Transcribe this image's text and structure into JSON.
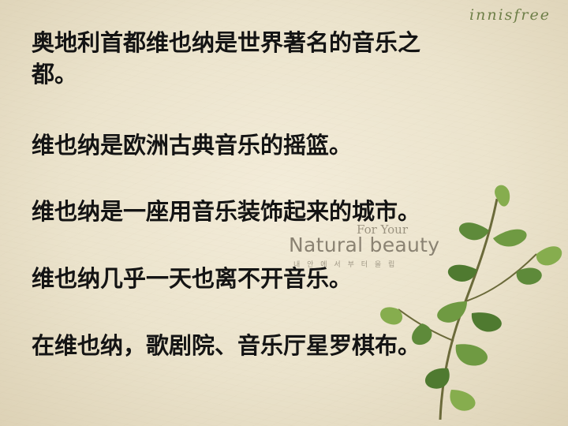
{
  "brand": "innisfree",
  "watermark": {
    "line1": "For Your",
    "line2": "Natural beauty",
    "line3": "내 안 에 서 부 터 을 립"
  },
  "paragraphs": [
    "奥地利首都维也纳是世界著名的音乐之",
    "都。",
    "维也纳是欧洲古典音乐的摇篮。",
    "维也纳是一座用音乐装饰起来的城市。",
    "维也纳几乎一天也离不开音乐。",
    "在维也纳，歌剧院、音乐厅星罗棋布。"
  ],
  "colors": {
    "leaf": "#5e8a3a",
    "leaf_light": "#86ad4e",
    "stem": "#6b6a3a",
    "text": "#141414"
  },
  "icons": [
    "leafy-branch-illustration"
  ]
}
